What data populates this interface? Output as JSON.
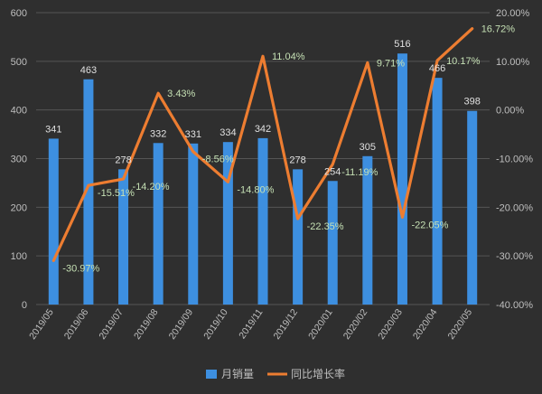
{
  "chart_data": {
    "type": "bar",
    "categories": [
      "2019/05",
      "2019/06",
      "2019/07",
      "2019/08",
      "2019/09",
      "2019/10",
      "2019/11",
      "2019/12",
      "2020/01",
      "2020/02",
      "2020/03",
      "2020/04",
      "2020/05"
    ],
    "series": [
      {
        "name": "月销量",
        "type": "bar",
        "axis": "left",
        "color": "#3d8fe0",
        "values": [
          341,
          463,
          278,
          332,
          331,
          334,
          342,
          278,
          254,
          305,
          516,
          466,
          398
        ],
        "labels": [
          "341",
          "463",
          "278",
          "332",
          "331",
          "334",
          "342",
          "278",
          "254",
          "305",
          "516",
          "466",
          "398"
        ]
      },
      {
        "name": "同比增长率",
        "type": "line",
        "axis": "right",
        "color": "#ed7d31",
        "values": [
          -30.97,
          -15.51,
          -14.2,
          3.43,
          -8.56,
          -14.8,
          11.04,
          -22.35,
          -11.19,
          9.71,
          -22.05,
          10.17,
          16.72
        ],
        "labels": [
          "-30.97%",
          "-15.51%",
          "-14.20%",
          "3.43%",
          "-8.56%",
          "-14.80%",
          "11.04%",
          "-22.35%",
          "-11.19%",
          "9.71%",
          "-22.05%",
          "10.17%",
          "16.72%"
        ]
      }
    ],
    "y_left": {
      "min": 0,
      "max": 600,
      "ticks": [
        "0",
        "100",
        "200",
        "300",
        "400",
        "500",
        "600"
      ]
    },
    "y_right": {
      "min": -40,
      "max": 20,
      "ticks": [
        "-40.00%",
        "-30.00%",
        "-20.00%",
        "-10.00%",
        "0.00%",
        "10.00%",
        "20.00%"
      ]
    },
    "grid": true,
    "legend_position": "bottom",
    "colors": {
      "background": "#2f2f2f",
      "grid": "#555555",
      "tick_text": "#bfbfbf",
      "bar_label": "#e0e0e0",
      "line_label": "#c5e0b4"
    }
  }
}
